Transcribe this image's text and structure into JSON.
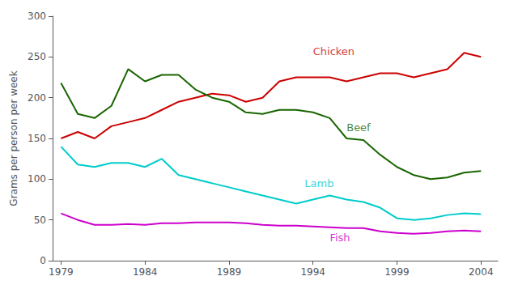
{
  "chart_data": {
    "type": "line",
    "x": [
      1979,
      1980,
      1981,
      1982,
      1983,
      1984,
      1985,
      1986,
      1987,
      1988,
      1989,
      1990,
      1991,
      1992,
      1993,
      1994,
      1995,
      1996,
      1997,
      1998,
      1999,
      2000,
      2001,
      2002,
      2003,
      2004
    ],
    "series": [
      {
        "color": "#cc0000",
        "values": [
          150,
          158,
          150,
          165,
          170,
          175,
          185,
          195,
          200,
          205,
          203,
          195,
          200,
          220,
          225,
          225,
          225,
          220,
          225,
          230,
          230,
          225,
          230,
          235,
          255,
          250
        ]
      },
      {
        "color": "#1a6600",
        "values": [
          218,
          180,
          175,
          190,
          235,
          220,
          228,
          228,
          210,
          200,
          195,
          182,
          180,
          185,
          185,
          182,
          175,
          150,
          148,
          130,
          115,
          105,
          100,
          102,
          108,
          110
        ]
      },
      {
        "color": "#00cccc",
        "values": [
          140,
          118,
          115,
          120,
          120,
          115,
          125,
          105,
          100,
          95,
          90,
          85,
          80,
          75,
          70,
          75,
          80,
          75,
          72,
          65,
          52,
          50,
          52,
          56,
          58,
          57
        ]
      },
      {
        "color": "#cc00cc",
        "values": [
          58,
          50,
          44,
          44,
          45,
          44,
          46,
          46,
          47,
          47,
          47,
          46,
          44,
          43,
          43,
          42,
          41,
          40,
          40,
          36,
          34,
          33,
          34,
          36,
          37,
          36
        ]
      }
    ],
    "annotations": [
      {
        "text": "Chicken",
        "x": 1994,
        "y": 250,
        "color": "#cc0000"
      },
      {
        "text": "Beef",
        "x": 1996,
        "y": 157,
        "color": "#1a6600"
      },
      {
        "text": "Lamb",
        "x": 1993.5,
        "y": 88,
        "color": "#00cccc"
      },
      {
        "text": "Fish",
        "x": 1995,
        "y": 22,
        "color": "#cc00cc"
      }
    ],
    "ylabel": "Grams per person per week",
    "xlim": [
      1978.5,
      2005
    ],
    "xticks": [
      1979,
      1984,
      1989,
      1994,
      1999,
      2004
    ],
    "ylim": [
      0,
      300
    ],
    "yticks": [
      0,
      50,
      100,
      150,
      200,
      250,
      300
    ],
    "grid": false
  }
}
